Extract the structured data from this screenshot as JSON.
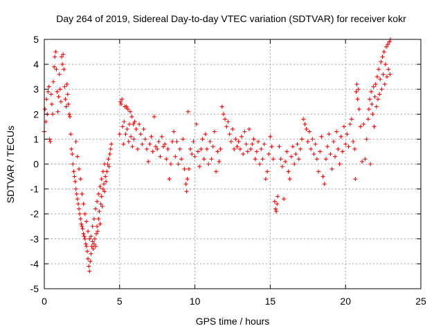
{
  "chart_data": {
    "type": "scatter",
    "title": "Day 264 of 2019, Sidereal Day-to-day VTEC variation (SDTVAR) for receiver kokr",
    "xlabel": "GPS time / hours",
    "ylabel": "SDTVAR / TECUs",
    "xlim": [
      0,
      25
    ],
    "ylim": [
      -5,
      5
    ],
    "x_ticks": [
      0,
      5,
      10,
      15,
      20,
      25
    ],
    "x_tick_labels": [
      "0",
      "5",
      "10",
      "15",
      "20",
      "25"
    ],
    "y_ticks": [
      -5,
      -4,
      -3,
      -2,
      -1,
      0,
      1,
      2,
      3,
      4,
      5
    ],
    "y_tick_labels": [
      "-5",
      "-4",
      "-3",
      "-2",
      "-1",
      "0",
      "1",
      "2",
      "3",
      "4",
      "5"
    ],
    "grid": true,
    "marker": "+",
    "color": "#ff0000",
    "series": [
      {
        "name": "SDTVAR",
        "points": [
          [
            0.0,
            1.3
          ],
          [
            0.05,
            2.2
          ],
          [
            0.1,
            1.7
          ],
          [
            0.15,
            2.6
          ],
          [
            0.2,
            2.0
          ],
          [
            0.25,
            2.9
          ],
          [
            0.3,
            3.1
          ],
          [
            0.35,
            1.0
          ],
          [
            0.4,
            0.9
          ],
          [
            0.45,
            2.8
          ],
          [
            0.5,
            2.4
          ],
          [
            0.55,
            2.0
          ],
          [
            0.6,
            3.3
          ],
          [
            0.65,
            3.9
          ],
          [
            0.7,
            4.3
          ],
          [
            0.75,
            4.5
          ],
          [
            0.8,
            3.8
          ],
          [
            0.85,
            2.9
          ],
          [
            0.9,
            2.1
          ],
          [
            0.95,
            2.7
          ],
          [
            1.0,
            3.6
          ],
          [
            1.05,
            3.0
          ],
          [
            1.1,
            2.5
          ],
          [
            1.15,
            4.3
          ],
          [
            1.2,
            4.0
          ],
          [
            1.25,
            4.4
          ],
          [
            1.3,
            3.8
          ],
          [
            1.35,
            3.1
          ],
          [
            1.4,
            2.6
          ],
          [
            1.45,
            2.3
          ],
          [
            1.5,
            3.2
          ],
          [
            1.55,
            2.8
          ],
          [
            1.6,
            2.4
          ],
          [
            1.65,
            2.0
          ],
          [
            1.7,
            1.9
          ],
          [
            1.75,
            1.2
          ],
          [
            1.8,
            0.6
          ],
          [
            1.85,
            0.4
          ],
          [
            1.9,
            0.0
          ],
          [
            1.95,
            -0.3
          ],
          [
            2.0,
            -0.5
          ],
          [
            2.05,
            -0.7
          ],
          [
            2.1,
            -1.0
          ],
          [
            2.15,
            -1.2
          ],
          [
            2.2,
            -1.4
          ],
          [
            2.25,
            -1.6
          ],
          [
            2.3,
            -1.8
          ],
          [
            2.35,
            -2.0
          ],
          [
            2.4,
            -2.2
          ],
          [
            2.45,
            -2.4
          ],
          [
            2.5,
            -2.5
          ],
          [
            2.55,
            -2.6
          ],
          [
            2.6,
            -2.8
          ],
          [
            2.65,
            -2.9
          ],
          [
            2.7,
            -3.0
          ],
          [
            2.75,
            -3.2
          ],
          [
            2.8,
            -3.3
          ],
          [
            2.85,
            -3.5
          ],
          [
            2.9,
            -3.8
          ],
          [
            2.95,
            -4.1
          ],
          [
            3.0,
            -4.3
          ],
          [
            3.05,
            -3.9
          ],
          [
            3.1,
            -3.6
          ],
          [
            3.15,
            -3.3
          ],
          [
            3.2,
            -3.1
          ],
          [
            3.25,
            -3.4
          ],
          [
            3.3,
            -3.2
          ],
          [
            3.35,
            -3.0
          ],
          [
            3.4,
            -3.3
          ],
          [
            3.45,
            -2.8
          ],
          [
            3.5,
            -2.5
          ],
          [
            3.55,
            -2.7
          ],
          [
            3.6,
            -2.2
          ],
          [
            3.65,
            -1.9
          ],
          [
            3.7,
            -2.4
          ],
          [
            3.75,
            -1.6
          ],
          [
            3.8,
            -1.3
          ],
          [
            3.85,
            -1.7
          ],
          [
            3.9,
            -1.0
          ],
          [
            3.95,
            -0.8
          ],
          [
            4.0,
            -1.1
          ],
          [
            4.05,
            -0.5
          ],
          [
            4.1,
            -0.7
          ],
          [
            4.15,
            -0.3
          ],
          [
            4.2,
            0.0
          ],
          [
            4.25,
            0.2
          ],
          [
            4.3,
            -0.1
          ],
          [
            4.35,
            0.4
          ],
          [
            4.4,
            0.6
          ],
          [
            4.45,
            0.8
          ],
          [
            2.1,
            0.9
          ],
          [
            2.2,
            0.3
          ],
          [
            2.3,
            -0.2
          ],
          [
            2.4,
            -0.6
          ],
          [
            2.5,
            -1.2
          ],
          [
            2.6,
            -1.6
          ],
          [
            2.7,
            -2.0
          ],
          [
            2.8,
            -2.3
          ],
          [
            2.9,
            -2.7
          ],
          [
            3.0,
            -3.0
          ],
          [
            3.1,
            -2.9
          ],
          [
            3.2,
            -2.5
          ],
          [
            3.3,
            -2.2
          ],
          [
            3.4,
            -1.8
          ],
          [
            3.5,
            -1.5
          ],
          [
            3.6,
            -1.2
          ],
          [
            3.7,
            -0.9
          ],
          [
            3.8,
            -0.6
          ],
          [
            3.9,
            -0.3
          ],
          [
            4.0,
            0.0
          ],
          [
            5.0,
            1.2
          ],
          [
            5.05,
            2.5
          ],
          [
            5.1,
            2.4
          ],
          [
            5.15,
            2.6
          ],
          [
            5.2,
            1.5
          ],
          [
            5.25,
            0.8
          ],
          [
            5.3,
            1.7
          ],
          [
            5.35,
            2.3
          ],
          [
            5.4,
            1.2
          ],
          [
            5.45,
            2.3
          ],
          [
            5.5,
            1.4
          ],
          [
            5.55,
            2.2
          ],
          [
            5.6,
            0.9
          ],
          [
            5.65,
            1.6
          ],
          [
            5.7,
            2.1
          ],
          [
            5.75,
            1.1
          ],
          [
            5.8,
            1.9
          ],
          [
            5.85,
            0.7
          ],
          [
            5.9,
            1.6
          ],
          [
            5.95,
            1.0
          ],
          [
            6.0,
            1.7
          ],
          [
            6.1,
            1.4
          ],
          [
            6.2,
            0.6
          ],
          [
            6.3,
            1.6
          ],
          [
            6.4,
            1.2
          ],
          [
            6.5,
            0.8
          ],
          [
            6.6,
            1.4
          ],
          [
            6.7,
            1.0
          ],
          [
            6.8,
            0.6
          ],
          [
            6.9,
            0.1
          ],
          [
            7.0,
            0.8
          ],
          [
            7.1,
            1.1
          ],
          [
            7.2,
            0.5
          ],
          [
            7.3,
            1.9
          ],
          [
            7.4,
            0.7
          ],
          [
            7.5,
            0.6
          ],
          [
            7.6,
            0.9
          ],
          [
            7.7,
            0.3
          ],
          [
            7.8,
            1.1
          ],
          [
            7.9,
            0.7
          ],
          [
            8.0,
            0.8
          ],
          [
            8.1,
            0.2
          ],
          [
            8.2,
            0.6
          ],
          [
            8.3,
            -0.6
          ],
          [
            8.4,
            0.0
          ],
          [
            8.5,
            0.9
          ],
          [
            8.6,
            1.3
          ],
          [
            8.7,
            0.3
          ],
          [
            8.8,
            0.9
          ],
          [
            8.9,
            0.0
          ],
          [
            9.0,
            0.6
          ],
          [
            9.1,
            0.2
          ],
          [
            9.2,
            1.0
          ],
          [
            9.3,
            -0.2
          ],
          [
            9.4,
            -0.8
          ],
          [
            9.45,
            -1.1
          ],
          [
            9.5,
            -0.6
          ],
          [
            9.55,
            2.1
          ],
          [
            9.6,
            -0.2
          ],
          [
            9.7,
            0.6
          ],
          [
            9.8,
            0.4
          ],
          [
            9.9,
            0.9
          ],
          [
            10.0,
            0.3
          ],
          [
            10.1,
            1.6
          ],
          [
            10.2,
            0.5
          ],
          [
            10.3,
            -0.1
          ],
          [
            10.4,
            0.6
          ],
          [
            10.5,
            1.0
          ],
          [
            10.6,
            0.2
          ],
          [
            10.7,
            1.2
          ],
          [
            10.8,
            0.6
          ],
          [
            10.9,
            0.0
          ],
          [
            11.0,
            0.9
          ],
          [
            11.1,
            0.2
          ],
          [
            11.2,
            0.7
          ],
          [
            11.3,
            1.3
          ],
          [
            11.4,
            -0.3
          ],
          [
            11.5,
            0.5
          ],
          [
            11.6,
            0.1
          ],
          [
            11.7,
            0.6
          ],
          [
            11.8,
            2.3
          ],
          [
            11.9,
            2.0
          ],
          [
            12.0,
            1.8
          ],
          [
            12.1,
            1.5
          ],
          [
            12.2,
            1.7
          ],
          [
            12.3,
            1.2
          ],
          [
            12.4,
            0.9
          ],
          [
            12.5,
            1.4
          ],
          [
            12.6,
            0.6
          ],
          [
            12.7,
            1.0
          ],
          [
            12.8,
            0.7
          ],
          [
            12.9,
            0.9
          ],
          [
            13.0,
            0.6
          ],
          [
            13.1,
            1.1
          ],
          [
            13.2,
            0.4
          ],
          [
            13.3,
            1.3
          ],
          [
            13.4,
            0.8
          ],
          [
            13.5,
            0.5
          ],
          [
            13.6,
            1.4
          ],
          [
            13.7,
            0.6
          ],
          [
            13.8,
            0.8
          ],
          [
            13.9,
            1.0
          ],
          [
            14.0,
            0.2
          ],
          [
            14.1,
            0.5
          ],
          [
            14.2,
            0.9
          ],
          [
            14.3,
            0.0
          ],
          [
            14.4,
            0.6
          ],
          [
            14.5,
            0.2
          ],
          [
            14.6,
            0.8
          ],
          [
            14.7,
            -0.6
          ],
          [
            14.8,
            -0.3
          ],
          [
            14.9,
            0.4
          ],
          [
            15.0,
            1.1
          ],
          [
            15.1,
            0.7
          ],
          [
            15.2,
            0.2
          ],
          [
            15.3,
            -1.5
          ],
          [
            15.35,
            -1.8
          ],
          [
            15.4,
            -1.9
          ],
          [
            15.45,
            -1.6
          ],
          [
            15.5,
            -1.3
          ],
          [
            15.6,
            0.7
          ],
          [
            15.7,
            0.2
          ],
          [
            15.8,
            -0.1
          ],
          [
            15.9,
            -1.4
          ],
          [
            16.0,
            0.1
          ],
          [
            16.1,
            0.5
          ],
          [
            16.2,
            -0.3
          ],
          [
            16.3,
            -0.6
          ],
          [
            16.4,
            0.3
          ],
          [
            16.5,
            0.7
          ],
          [
            16.6,
            0.0
          ],
          [
            16.7,
            0.4
          ],
          [
            16.8,
            0.8
          ],
          [
            16.9,
            0.2
          ],
          [
            17.0,
            0.6
          ],
          [
            17.1,
            1.0
          ],
          [
            17.2,
            1.8
          ],
          [
            17.3,
            1.6
          ],
          [
            17.4,
            1.4
          ],
          [
            17.5,
            0.9
          ],
          [
            17.6,
            1.3
          ],
          [
            17.7,
            0.6
          ],
          [
            17.8,
            1.0
          ],
          [
            17.9,
            0.4
          ],
          [
            18.0,
            0.8
          ],
          [
            18.1,
            0.2
          ],
          [
            18.2,
            -0.3
          ],
          [
            18.3,
            0.5
          ],
          [
            18.4,
            1.1
          ],
          [
            18.5,
            -0.5
          ],
          [
            18.6,
            -0.8
          ],
          [
            18.7,
            0.2
          ],
          [
            18.8,
            0.7
          ],
          [
            18.9,
            1.2
          ],
          [
            19.0,
            0.4
          ],
          [
            19.1,
            -0.2
          ],
          [
            19.2,
            0.9
          ],
          [
            19.3,
            0.3
          ],
          [
            19.4,
            1.3
          ],
          [
            19.5,
            0.6
          ],
          [
            19.6,
            0.0
          ],
          [
            19.7,
            1.1
          ],
          [
            19.8,
            0.5
          ],
          [
            19.9,
            1.5
          ],
          [
            20.0,
            0.8
          ],
          [
            20.1,
            1.2
          ],
          [
            20.2,
            0.7
          ],
          [
            20.3,
            1.6
          ],
          [
            20.4,
            1.8
          ],
          [
            20.5,
            0.9
          ],
          [
            20.6,
            0.6
          ],
          [
            20.65,
            -0.6
          ],
          [
            20.7,
            2.9
          ],
          [
            20.75,
            3.2
          ],
          [
            20.8,
            2.6
          ],
          [
            20.85,
            3.0
          ],
          [
            20.9,
            2.2
          ],
          [
            21.0,
            1.5
          ],
          [
            21.1,
            0.1
          ],
          [
            21.2,
            1.6
          ],
          [
            21.3,
            0.2
          ],
          [
            21.4,
            1.0
          ],
          [
            21.5,
            1.8
          ],
          [
            21.55,
            2.2
          ],
          [
            21.6,
            2.6
          ],
          [
            21.65,
            0.0
          ],
          [
            21.7,
            2.9
          ],
          [
            21.75,
            2.4
          ],
          [
            21.8,
            2.0
          ],
          [
            21.85,
            3.1
          ],
          [
            21.9,
            1.5
          ],
          [
            21.95,
            2.7
          ],
          [
            22.0,
            3.2
          ],
          [
            22.05,
            2.3
          ],
          [
            22.1,
            3.5
          ],
          [
            22.15,
            2.6
          ],
          [
            22.2,
            3.8
          ],
          [
            22.25,
            2.8
          ],
          [
            22.3,
            3.4
          ],
          [
            22.35,
            4.1
          ],
          [
            22.4,
            3.0
          ],
          [
            22.45,
            4.3
          ],
          [
            22.5,
            3.6
          ],
          [
            22.55,
            4.5
          ],
          [
            22.6,
            3.2
          ],
          [
            22.65,
            4.0
          ],
          [
            22.7,
            4.7
          ],
          [
            22.75,
            3.5
          ],
          [
            22.8,
            4.8
          ],
          [
            22.85,
            3.8
          ],
          [
            22.9,
            4.9
          ],
          [
            22.95,
            3.6
          ],
          [
            22.98,
            5.0
          ]
        ]
      }
    ]
  }
}
